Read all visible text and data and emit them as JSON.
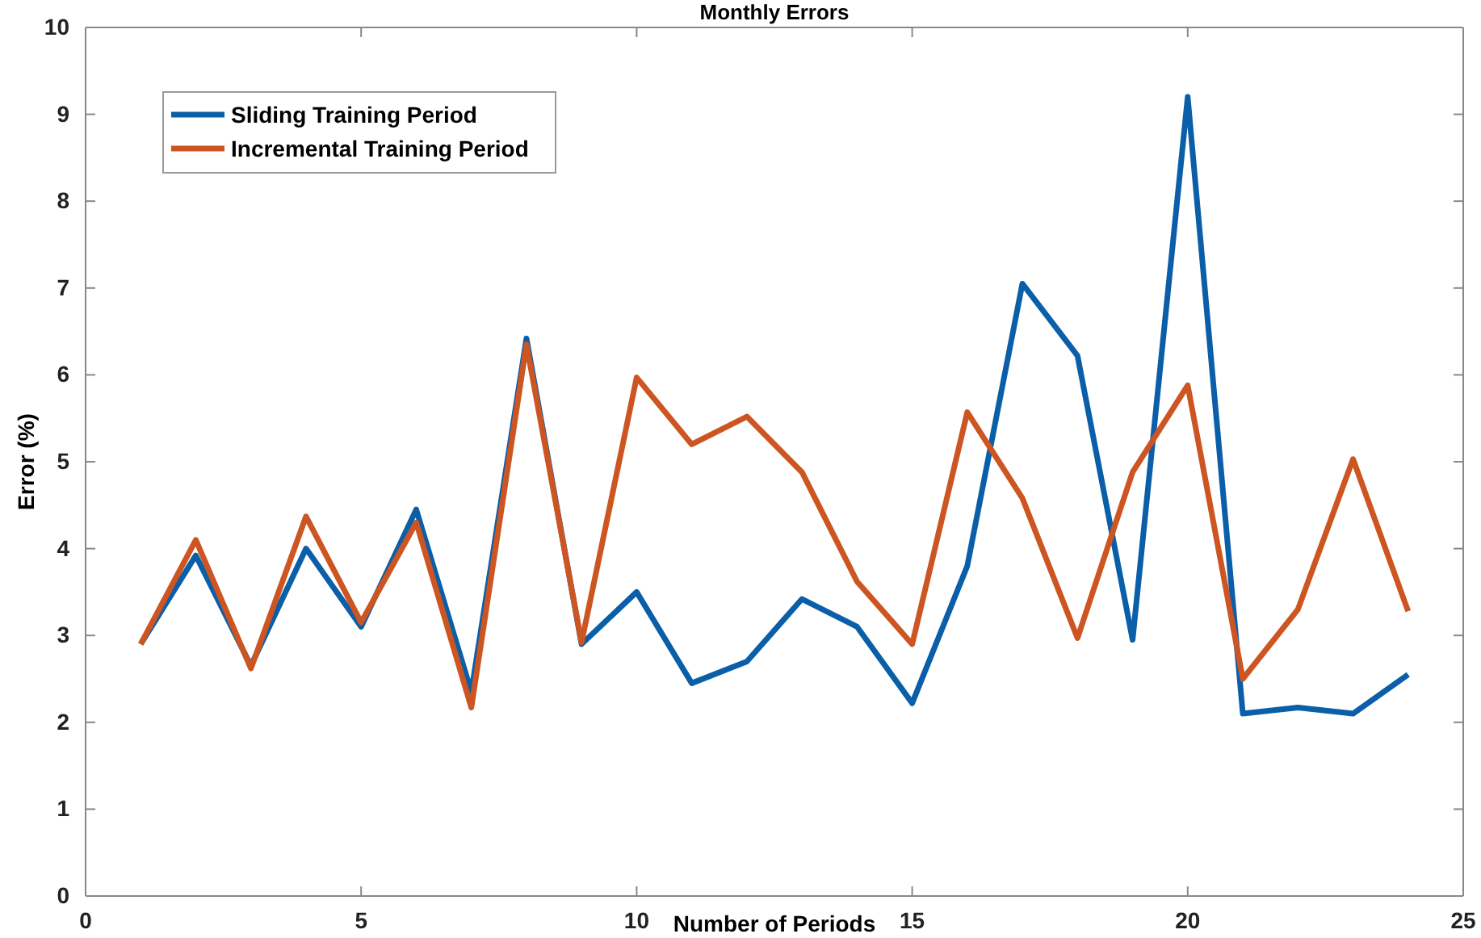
{
  "chart_data": {
    "type": "line",
    "title": "Monthly Errors",
    "xlabel": "Number of Periods",
    "ylabel": "Error (%)",
    "x": [
      1,
      2,
      3,
      4,
      5,
      6,
      7,
      8,
      9,
      10,
      11,
      12,
      13,
      14,
      15,
      16,
      17,
      18,
      19,
      20,
      21,
      22,
      23,
      24
    ],
    "series": [
      {
        "name": "Sliding Training Period",
        "color": "#0a5fa8",
        "values": [
          2.9,
          3.92,
          2.65,
          4.0,
          3.1,
          4.45,
          2.35,
          6.42,
          2.9,
          3.5,
          2.45,
          2.7,
          3.42,
          3.1,
          2.22,
          3.8,
          7.05,
          6.22,
          2.95,
          9.2,
          2.1,
          2.17,
          2.1,
          2.55
        ]
      },
      {
        "name": "Incremental Training Period",
        "color": "#cc5522",
        "values": [
          2.9,
          4.1,
          2.62,
          4.37,
          3.15,
          4.3,
          2.17,
          6.35,
          2.92,
          5.97,
          5.2,
          5.52,
          4.88,
          3.62,
          2.9,
          5.57,
          4.58,
          2.97,
          4.88,
          5.88,
          2.5,
          3.3,
          5.03,
          3.28
        ]
      }
    ],
    "xlim": [
      0,
      25
    ],
    "xticks": [
      0,
      5,
      10,
      15,
      20,
      25
    ],
    "ylim": [
      0,
      10
    ],
    "yticks": [
      0,
      1,
      2,
      3,
      4,
      5,
      6,
      7,
      8,
      9,
      10
    ],
    "grid": false,
    "legend": "top left",
    "marker": "none",
    "line_style": "solid"
  }
}
